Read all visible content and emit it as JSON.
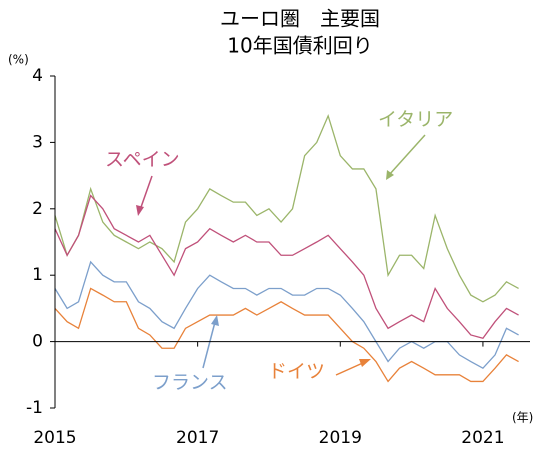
{
  "chart_data": {
    "type": "line",
    "title": "ユーロ圏　主要国",
    "subtitle": "10年国債利回り",
    "y_label": "(%)",
    "x_label": "(年)",
    "annotations": [
      "イタリア",
      "スペイン",
      "フランス",
      "ドイツ"
    ],
    "x": [
      2015,
      2015.17,
      2015.33,
      2015.5,
      2015.67,
      2015.83,
      2016,
      2016.17,
      2016.33,
      2016.5,
      2016.67,
      2016.83,
      2017,
      2017.17,
      2017.33,
      2017.5,
      2017.67,
      2017.83,
      2018,
      2018.17,
      2018.33,
      2018.5,
      2018.67,
      2018.83,
      2019,
      2019.17,
      2019.33,
      2019.5,
      2019.67,
      2019.83,
      2020,
      2020.17,
      2020.33,
      2020.5,
      2020.67,
      2020.83,
      2021,
      2021.17,
      2021.33,
      2021.5
    ],
    "series": [
      {
        "name": "イタリア",
        "color": "#9bb56a",
        "values": [
          1.9,
          1.3,
          1.6,
          2.3,
          1.8,
          1.6,
          1.5,
          1.4,
          1.5,
          1.4,
          1.2,
          1.8,
          2.0,
          2.3,
          2.2,
          2.1,
          2.1,
          1.9,
          2.0,
          1.8,
          2.0,
          2.8,
          3.0,
          3.4,
          2.8,
          2.6,
          2.6,
          2.3,
          1.0,
          1.3,
          1.3,
          1.1,
          1.9,
          1.4,
          1.0,
          0.7,
          0.6,
          0.7,
          0.9,
          0.8
        ]
      },
      {
        "name": "スペイン",
        "color": "#c0517a",
        "values": [
          1.7,
          1.3,
          1.6,
          2.2,
          2.0,
          1.7,
          1.6,
          1.5,
          1.6,
          1.3,
          1.0,
          1.4,
          1.5,
          1.7,
          1.6,
          1.5,
          1.6,
          1.5,
          1.5,
          1.3,
          1.3,
          1.4,
          1.5,
          1.6,
          1.4,
          1.2,
          1.0,
          0.5,
          0.2,
          0.3,
          0.4,
          0.3,
          0.8,
          0.5,
          0.3,
          0.1,
          0.05,
          0.3,
          0.5,
          0.4
        ]
      },
      {
        "name": "フランス",
        "color": "#7c9fcb",
        "values": [
          0.8,
          0.5,
          0.6,
          1.2,
          1.0,
          0.9,
          0.9,
          0.6,
          0.5,
          0.3,
          0.2,
          0.5,
          0.8,
          1.0,
          0.9,
          0.8,
          0.8,
          0.7,
          0.8,
          0.8,
          0.7,
          0.7,
          0.8,
          0.8,
          0.7,
          0.5,
          0.3,
          0.0,
          -0.3,
          -0.1,
          0.0,
          -0.1,
          0.0,
          0.0,
          -0.2,
          -0.3,
          -0.4,
          -0.2,
          0.2,
          0.1
        ]
      },
      {
        "name": "ドイツ",
        "color": "#e8823a",
        "values": [
          0.5,
          0.3,
          0.2,
          0.8,
          0.7,
          0.6,
          0.6,
          0.2,
          0.1,
          -0.1,
          -0.1,
          0.2,
          0.3,
          0.4,
          0.4,
          0.4,
          0.5,
          0.4,
          0.5,
          0.6,
          0.5,
          0.4,
          0.4,
          0.4,
          0.2,
          0.0,
          -0.1,
          -0.3,
          -0.6,
          -0.4,
          -0.3,
          -0.4,
          -0.5,
          -0.5,
          -0.5,
          -0.6,
          -0.6,
          -0.4,
          -0.2,
          -0.3
        ]
      }
    ],
    "xlim": [
      2015,
      2021.66
    ],
    "xticks": [
      2015,
      2017,
      2019,
      2021
    ],
    "ylim": [
      -1,
      4
    ],
    "yticks": [
      4,
      3,
      2,
      1,
      0,
      -1
    ]
  }
}
